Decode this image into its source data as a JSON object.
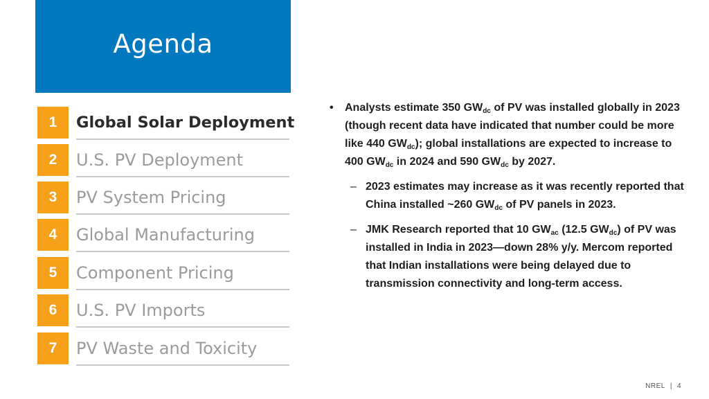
{
  "header": {
    "title": "Agenda"
  },
  "agenda": {
    "items": [
      {
        "number": "1",
        "label": "Global Solar Deployment",
        "active": true
      },
      {
        "number": "2",
        "label": "U.S. PV Deployment",
        "active": false
      },
      {
        "number": "3",
        "label": "PV System Pricing",
        "active": false
      },
      {
        "number": "4",
        "label": "Global Manufacturing",
        "active": false
      },
      {
        "number": "5",
        "label": "Component Pricing",
        "active": false
      },
      {
        "number": "6",
        "label": "U.S. PV Imports",
        "active": false
      },
      {
        "number": "7",
        "label": "PV Waste and Toxicity",
        "active": false
      }
    ]
  },
  "content": {
    "bullet_marker": "•",
    "sub_marker": "–",
    "main": [
      {
        "t": "Analysts estimate 350 GW"
      },
      {
        "sub": "dc"
      },
      {
        "t": " of PV was installed globally in 2023 (though recent data have indicated that number could be more like 440 GW"
      },
      {
        "sub": "dc"
      },
      {
        "t": "); global installations are expected to increase to 400 GW"
      },
      {
        "sub": "dc"
      },
      {
        "t": " in 2024 and 590 GW"
      },
      {
        "sub": "dc"
      },
      {
        "t": " by 2027."
      }
    ],
    "subs": [
      [
        {
          "t": "2023 estimates may increase as it was recently reported that China installed ~260 GW"
        },
        {
          "sub": "dc"
        },
        {
          "t": " of PV panels in 2023."
        }
      ],
      [
        {
          "t": "JMK Research reported that 10 GW"
        },
        {
          "sub": "ac"
        },
        {
          "t": " (12.5 GW"
        },
        {
          "sub": "dc"
        },
        {
          "t": ") of PV was installed in India in 2023—down 28% y/y. Mercom reported that Indian installations were being delayed due to transmission connectivity and long-term access."
        }
      ]
    ]
  },
  "footer": {
    "org": "NREL",
    "separator": "|",
    "page": "4"
  },
  "colors": {
    "header_blue": "#0079c1",
    "number_orange": "#f7a11a",
    "rule_gray": "#c8c8c8"
  }
}
